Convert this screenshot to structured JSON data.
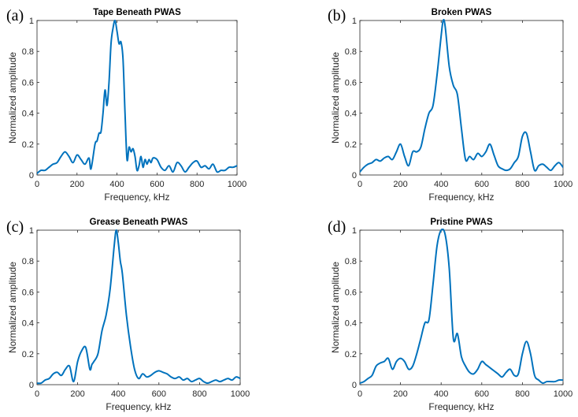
{
  "colors": {
    "line": "#0072BD",
    "axis": "#262626"
  },
  "chart_data": [
    {
      "type": "line",
      "panel_label": "(a)",
      "title": "Tape Beneath PWAS",
      "xlabel": "Frequency, kHz",
      "ylabel": "Normalized amplitude",
      "xlim": [
        0,
        1000
      ],
      "ylim": [
        0,
        1
      ],
      "xticks": [
        0,
        200,
        400,
        600,
        800,
        1000
      ],
      "yticks": [
        0,
        0.2,
        0.4,
        0.6,
        0.8,
        1
      ],
      "ytick_labels": [
        "0",
        "0.2",
        "0.4",
        "0.6",
        "0.8",
        "1"
      ],
      "x": [
        0,
        20,
        40,
        60,
        80,
        100,
        120,
        140,
        160,
        180,
        200,
        220,
        240,
        260,
        270,
        290,
        300,
        310,
        320,
        330,
        340,
        350,
        360,
        370,
        380,
        390,
        400,
        410,
        420,
        430,
        440,
        450,
        460,
        470,
        480,
        490,
        500,
        510,
        520,
        530,
        540,
        550,
        560,
        570,
        580,
        600,
        620,
        640,
        660,
        680,
        700,
        720,
        740,
        760,
        780,
        800,
        820,
        840,
        860,
        880,
        900,
        920,
        940,
        960,
        980,
        1000
      ],
      "y": [
        0.01,
        0.03,
        0.03,
        0.05,
        0.07,
        0.08,
        0.12,
        0.15,
        0.12,
        0.08,
        0.13,
        0.1,
        0.07,
        0.11,
        0.04,
        0.2,
        0.22,
        0.27,
        0.28,
        0.4,
        0.55,
        0.45,
        0.6,
        0.85,
        0.95,
        1.0,
        0.93,
        0.85,
        0.86,
        0.75,
        0.4,
        0.1,
        0.18,
        0.15,
        0.17,
        0.12,
        0.03,
        0.06,
        0.12,
        0.05,
        0.1,
        0.07,
        0.1,
        0.08,
        0.11,
        0.1,
        0.05,
        0.03,
        0.06,
        0.02,
        0.08,
        0.06,
        0.02,
        0.05,
        0.08,
        0.09,
        0.05,
        0.06,
        0.04,
        0.07,
        0.02,
        0.03,
        0.03,
        0.05,
        0.05,
        0.06
      ]
    },
    {
      "type": "line",
      "panel_label": "(b)",
      "title": "Broken PWAS",
      "xlabel": "Frequency, kHz",
      "ylabel": "Normalized amplitude",
      "xlim": [
        0,
        1000
      ],
      "ylim": [
        0,
        1
      ],
      "xticks": [
        0,
        200,
        400,
        600,
        800,
        1000
      ],
      "yticks": [
        0,
        0.2,
        0.4,
        0.6,
        0.8,
        1
      ],
      "ytick_labels": [
        "0",
        "0.2",
        "0.4",
        "0.6",
        "0.8",
        "1"
      ],
      "x": [
        0,
        20,
        40,
        60,
        80,
        100,
        120,
        140,
        160,
        180,
        200,
        220,
        240,
        260,
        280,
        300,
        320,
        340,
        360,
        380,
        400,
        410,
        420,
        440,
        460,
        480,
        500,
        520,
        540,
        560,
        580,
        600,
        620,
        640,
        660,
        680,
        700,
        720,
        740,
        760,
        780,
        800,
        820,
        840,
        860,
        880,
        900,
        920,
        940,
        960,
        980,
        1000
      ],
      "y": [
        0.02,
        0.05,
        0.07,
        0.08,
        0.1,
        0.09,
        0.11,
        0.12,
        0.1,
        0.15,
        0.2,
        0.12,
        0.06,
        0.15,
        0.15,
        0.18,
        0.3,
        0.4,
        0.45,
        0.65,
        0.9,
        1.0,
        0.96,
        0.7,
        0.58,
        0.52,
        0.3,
        0.1,
        0.12,
        0.1,
        0.14,
        0.12,
        0.15,
        0.2,
        0.13,
        0.06,
        0.04,
        0.03,
        0.04,
        0.08,
        0.12,
        0.25,
        0.27,
        0.15,
        0.03,
        0.06,
        0.07,
        0.05,
        0.03,
        0.06,
        0.08,
        0.05
      ]
    },
    {
      "type": "line",
      "panel_label": "(c)",
      "title": "Grease Beneath PWAS",
      "xlabel": "Frequency, kHz",
      "ylabel": "Normalized amplitude",
      "xlim": [
        0,
        1000
      ],
      "ylim": [
        0,
        1
      ],
      "xticks": [
        0,
        200,
        400,
        600,
        800,
        1000
      ],
      "yticks": [
        0,
        0.2,
        0.4,
        0.6,
        0.8,
        1
      ],
      "ytick_labels": [
        "0",
        "0.2",
        "0.4",
        "0.6",
        "0.8",
        "1"
      ],
      "x": [
        0,
        20,
        40,
        60,
        80,
        100,
        120,
        140,
        160,
        180,
        200,
        220,
        240,
        260,
        270,
        280,
        300,
        320,
        340,
        360,
        380,
        390,
        400,
        410,
        420,
        440,
        460,
        480,
        500,
        520,
        540,
        560,
        580,
        600,
        620,
        640,
        660,
        680,
        700,
        720,
        740,
        760,
        780,
        800,
        820,
        840,
        860,
        880,
        900,
        920,
        940,
        960,
        980,
        1000
      ],
      "y": [
        0.01,
        0.01,
        0.03,
        0.04,
        0.07,
        0.08,
        0.06,
        0.1,
        0.12,
        0.02,
        0.15,
        0.22,
        0.24,
        0.1,
        0.13,
        0.15,
        0.2,
        0.35,
        0.45,
        0.62,
        0.9,
        1.0,
        0.92,
        0.8,
        0.72,
        0.45,
        0.25,
        0.1,
        0.04,
        0.07,
        0.05,
        0.06,
        0.08,
        0.09,
        0.08,
        0.07,
        0.05,
        0.04,
        0.05,
        0.03,
        0.04,
        0.02,
        0.03,
        0.04,
        0.02,
        0.01,
        0.02,
        0.03,
        0.02,
        0.03,
        0.04,
        0.03,
        0.05,
        0.04
      ]
    },
    {
      "type": "line",
      "panel_label": "(d)",
      "title": "Pristine PWAS",
      "xlabel": "Frequency, kHz",
      "ylabel": "Normalized amplitude",
      "xlim": [
        0,
        1000
      ],
      "ylim": [
        0,
        1
      ],
      "xticks": [
        0,
        200,
        400,
        600,
        800,
        1000
      ],
      "yticks": [
        0,
        0.2,
        0.4,
        0.6,
        0.8,
        1
      ],
      "ytick_labels": [
        "0",
        "0.2",
        "0.4",
        "0.6",
        "0.8",
        "1"
      ],
      "x": [
        0,
        20,
        40,
        60,
        80,
        100,
        120,
        140,
        160,
        180,
        200,
        220,
        240,
        260,
        280,
        300,
        320,
        340,
        360,
        380,
        400,
        420,
        440,
        460,
        480,
        500,
        520,
        540,
        560,
        580,
        600,
        620,
        640,
        660,
        680,
        700,
        720,
        740,
        760,
        780,
        800,
        820,
        840,
        860,
        880,
        900,
        920,
        940,
        960,
        980,
        1000
      ],
      "y": [
        0.01,
        0.02,
        0.04,
        0.06,
        0.12,
        0.14,
        0.15,
        0.17,
        0.1,
        0.15,
        0.17,
        0.15,
        0.1,
        0.12,
        0.2,
        0.3,
        0.4,
        0.42,
        0.65,
        0.9,
        1.0,
        0.97,
        0.75,
        0.3,
        0.33,
        0.18,
        0.12,
        0.08,
        0.07,
        0.1,
        0.15,
        0.13,
        0.11,
        0.09,
        0.07,
        0.05,
        0.08,
        0.1,
        0.06,
        0.07,
        0.2,
        0.28,
        0.2,
        0.06,
        0.03,
        0.01,
        0.02,
        0.02,
        0.02,
        0.03,
        0.03
      ]
    }
  ]
}
